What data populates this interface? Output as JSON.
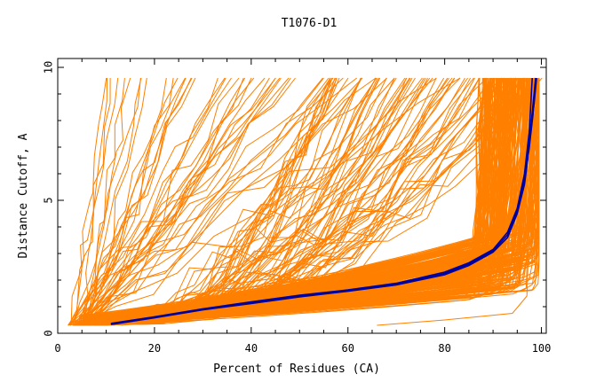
{
  "chart_data": {
    "type": "line",
    "title": "T1076-D1",
    "xlabel": "Percent of Residues (CA)",
    "ylabel": "Distance Cutoff, A",
    "xlim": [
      0,
      101
    ],
    "ylim": [
      0,
      10
    ],
    "xticks": [
      "0",
      "20",
      "40",
      "60",
      "80",
      "100"
    ],
    "yticks": [
      "0",
      "5",
      "10"
    ],
    "grid": false,
    "colors": {
      "models": "#ff8000",
      "highlight": "#0000a0"
    },
    "series": [
      {
        "x": [
          11,
          20,
          30,
          40,
          50,
          60,
          70,
          80,
          85,
          90,
          93,
          95,
          96.5,
          97.5,
          98.2,
          98.8
        ],
        "y": [
          0.35,
          0.6,
          0.9,
          1.15,
          1.4,
          1.6,
          1.85,
          2.25,
          2.6,
          3.1,
          3.7,
          4.6,
          5.8,
          7.2,
          8.5,
          9.6
        ]
      },
      {
        "x": [
          11,
          20,
          30,
          40,
          50,
          60,
          70,
          80,
          85,
          90,
          93,
          95,
          96.5,
          97.5,
          98.3,
          99
        ],
        "y": [
          0.33,
          0.58,
          0.88,
          1.12,
          1.37,
          1.58,
          1.82,
          2.2,
          2.55,
          3.05,
          3.6,
          4.5,
          5.6,
          7.0,
          8.3,
          9.6
        ]
      },
      {
        "x": [
          11,
          20,
          30,
          40,
          50,
          60,
          70,
          80,
          85,
          90,
          93,
          95,
          96.5,
          97.5,
          98.1
        ],
        "y": [
          0.37,
          0.62,
          0.92,
          1.18,
          1.43,
          1.63,
          1.88,
          2.3,
          2.65,
          3.15,
          3.8,
          4.7,
          6.0,
          7.6,
          9.6
        ]
      }
    ]
  }
}
